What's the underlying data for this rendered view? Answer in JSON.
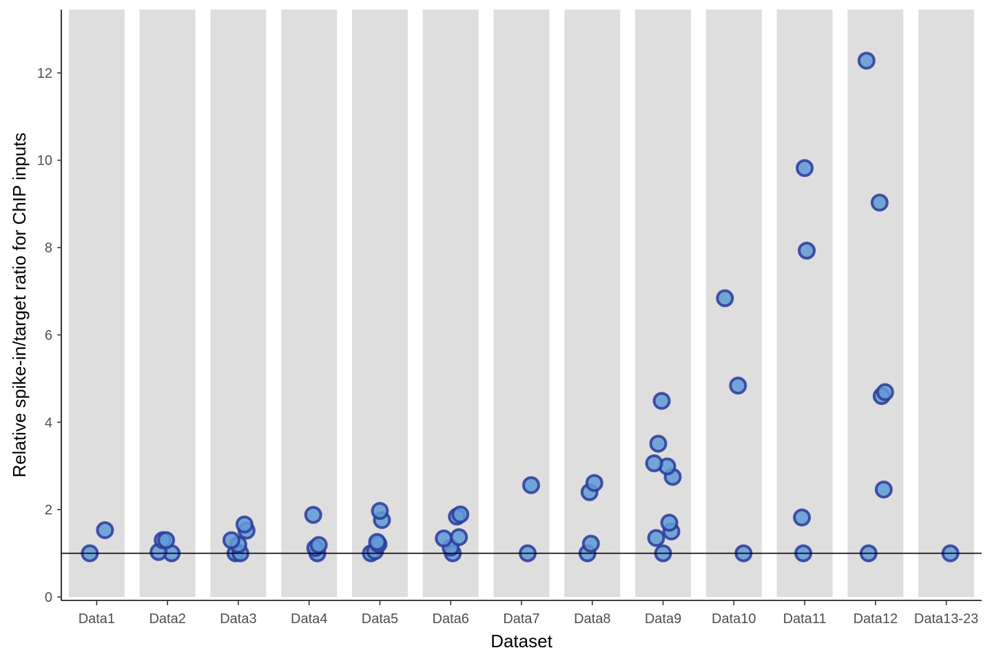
{
  "chart_data": {
    "type": "scatter",
    "title": "",
    "xlabel": "Dataset",
    "ylabel": "Relative spike-in/target ratio for ChIP inputs",
    "categories": [
      "Data1",
      "Data2",
      "Data3",
      "Data4",
      "Data5",
      "Data6",
      "Data7",
      "Data8",
      "Data9",
      "Data10",
      "Data11",
      "Data12",
      "Data13-23"
    ],
    "ylim": [
      0,
      13.4
    ],
    "yticks": [
      0,
      2,
      4,
      6,
      8,
      10,
      12
    ],
    "reference_line": 1,
    "grid": false,
    "legend": "none",
    "colors": {
      "band": "#dedede",
      "point_fill": "#5f9ad6",
      "point_stroke": "#2b3a9a",
      "axis": "#000000",
      "tick_label": "#4d4d4d"
    },
    "points": [
      {
        "category": "Data1",
        "values": [
          1.0,
          1.53
        ]
      },
      {
        "category": "Data2",
        "values": [
          1.0,
          1.03,
          1.3,
          1.3
        ]
      },
      {
        "category": "Data3",
        "values": [
          1.0,
          1.0,
          1.2,
          1.3,
          1.52,
          1.66
        ]
      },
      {
        "category": "Data4",
        "values": [
          1.0,
          1.12,
          1.19,
          1.88
        ]
      },
      {
        "category": "Data5",
        "values": [
          1.0,
          1.05,
          1.21,
          1.26,
          1.76,
          1.97
        ]
      },
      {
        "category": "Data6",
        "values": [
          1.0,
          1.13,
          1.34,
          1.37,
          1.84,
          1.89
        ]
      },
      {
        "category": "Data7",
        "values": [
          1.0,
          2.56
        ]
      },
      {
        "category": "Data8",
        "values": [
          1.0,
          1.22,
          2.4,
          2.61
        ]
      },
      {
        "category": "Data9",
        "values": [
          1.0,
          1.35,
          1.5,
          1.7,
          2.75,
          2.99,
          3.06,
          3.51,
          4.49
        ]
      },
      {
        "category": "Data10",
        "values": [
          1.0,
          4.84,
          6.84
        ]
      },
      {
        "category": "Data11",
        "values": [
          1.0,
          1.82,
          7.93,
          9.82
        ]
      },
      {
        "category": "Data12",
        "values": [
          1.0,
          2.46,
          4.6,
          4.69,
          9.03,
          12.28
        ]
      },
      {
        "category": "Data13-23",
        "values": [
          1.0
        ]
      }
    ]
  }
}
